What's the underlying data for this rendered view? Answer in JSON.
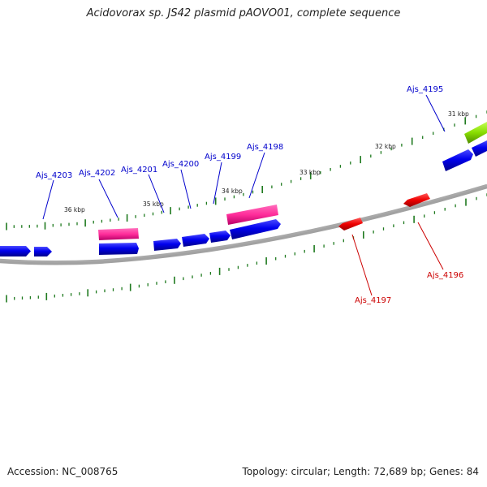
{
  "title": "Acidovorax sp. JS42 plasmid pAOVO01, complete sequence",
  "footer": {
    "accession": "Accession: NC_008765",
    "summary": "Topology: circular; Length: 72,689 bp; Genes: 84"
  },
  "colors": {
    "forward_cds": "#0000ee",
    "rna_feature": "#ff2d9a",
    "other_feature": "#88dd00",
    "reverse_cds": "#ee0000",
    "forward_label": "#0000cc",
    "reverse_label": "#cc0000",
    "ticks": "#1f7a1f",
    "backbone": "#8a8a8a"
  },
  "ruler": [
    {
      "label": "36 kbp",
      "pos": 36000
    },
    {
      "label": "35 kbp",
      "pos": 35000
    },
    {
      "label": "34 kbp",
      "pos": 34000
    },
    {
      "label": "33 kbp",
      "pos": 33000
    },
    {
      "label": "32 kbp",
      "pos": 32000
    },
    {
      "label": "31 kbp",
      "pos": 31000
    }
  ],
  "gene_labels": [
    {
      "name": "Ajs_4203",
      "strand": "forward"
    },
    {
      "name": "Ajs_4202",
      "strand": "forward"
    },
    {
      "name": "Ajs_4201",
      "strand": "forward"
    },
    {
      "name": "Ajs_4200",
      "strand": "forward"
    },
    {
      "name": "Ajs_4199",
      "strand": "forward"
    },
    {
      "name": "Ajs_4198",
      "strand": "forward"
    },
    {
      "name": "Ajs_4195",
      "strand": "forward"
    },
    {
      "name": "Ajs_4197",
      "strand": "reverse"
    },
    {
      "name": "Ajs_4196",
      "strand": "reverse"
    }
  ]
}
